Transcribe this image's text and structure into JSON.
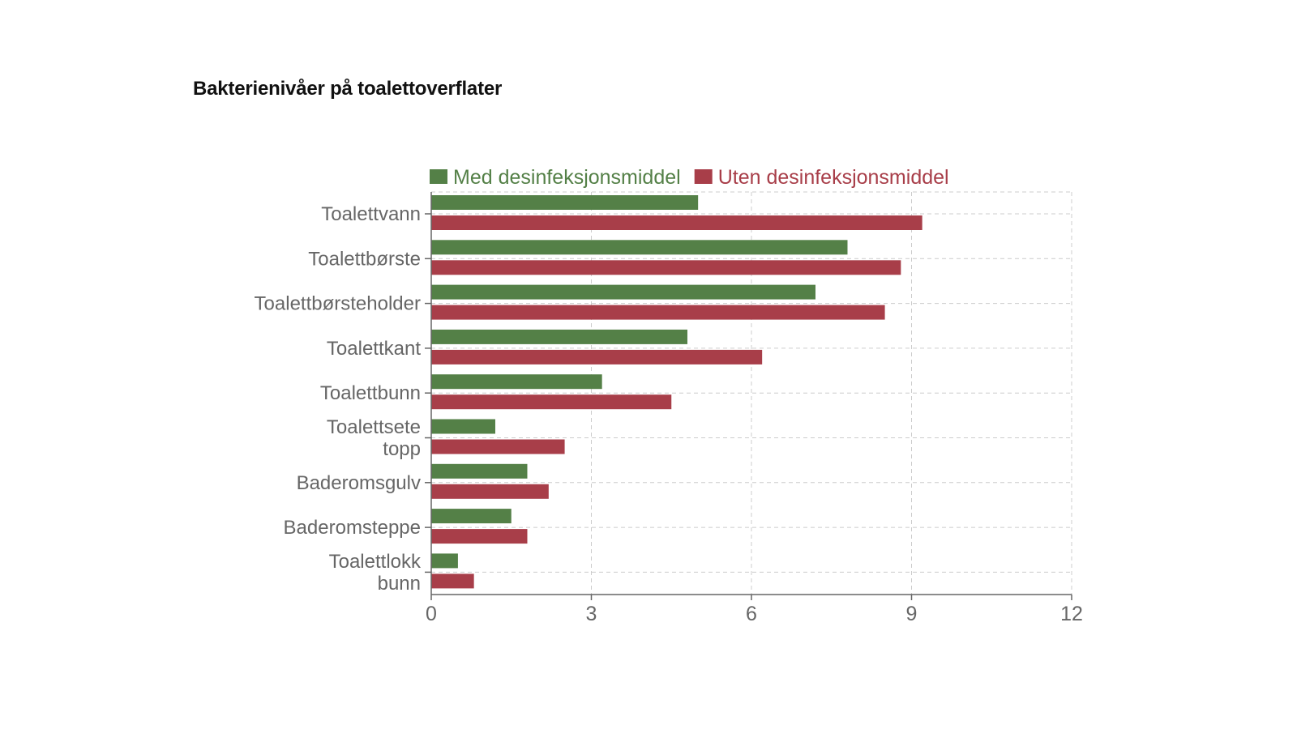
{
  "title": "Bakterienivåer på toalettoverflater",
  "chart_data": {
    "type": "bar",
    "orientation": "horizontal",
    "title": "Bakterienivåer på toalettoverflater",
    "categories": [
      [
        "Toalettvann"
      ],
      [
        "Toalettbørste"
      ],
      [
        "Toalettbørsteholder"
      ],
      [
        "Toalettkant"
      ],
      [
        "Toalettbunn"
      ],
      [
        "Toalettsete",
        "topp"
      ],
      [
        "Baderomsgulv"
      ],
      [
        "Baderomsteppe"
      ],
      [
        "Toalettlokk",
        "bunn"
      ]
    ],
    "series": [
      {
        "name": "Med desinfeksjonsmiddel",
        "color": "#548047",
        "values": [
          5.0,
          7.8,
          7.2,
          4.8,
          3.2,
          1.2,
          1.8,
          1.5,
          0.5
        ]
      },
      {
        "name": "Uten desinfeksjonsmiddel",
        "color": "#a83e49",
        "values": [
          9.2,
          8.8,
          8.5,
          6.2,
          4.5,
          2.5,
          2.2,
          1.8,
          0.8
        ]
      }
    ],
    "xlim": [
      0,
      12
    ],
    "xticks": [
      "0",
      "3",
      "6",
      "9",
      "12"
    ],
    "xlabel": "",
    "ylabel": "",
    "grid": true,
    "legend": "top"
  }
}
